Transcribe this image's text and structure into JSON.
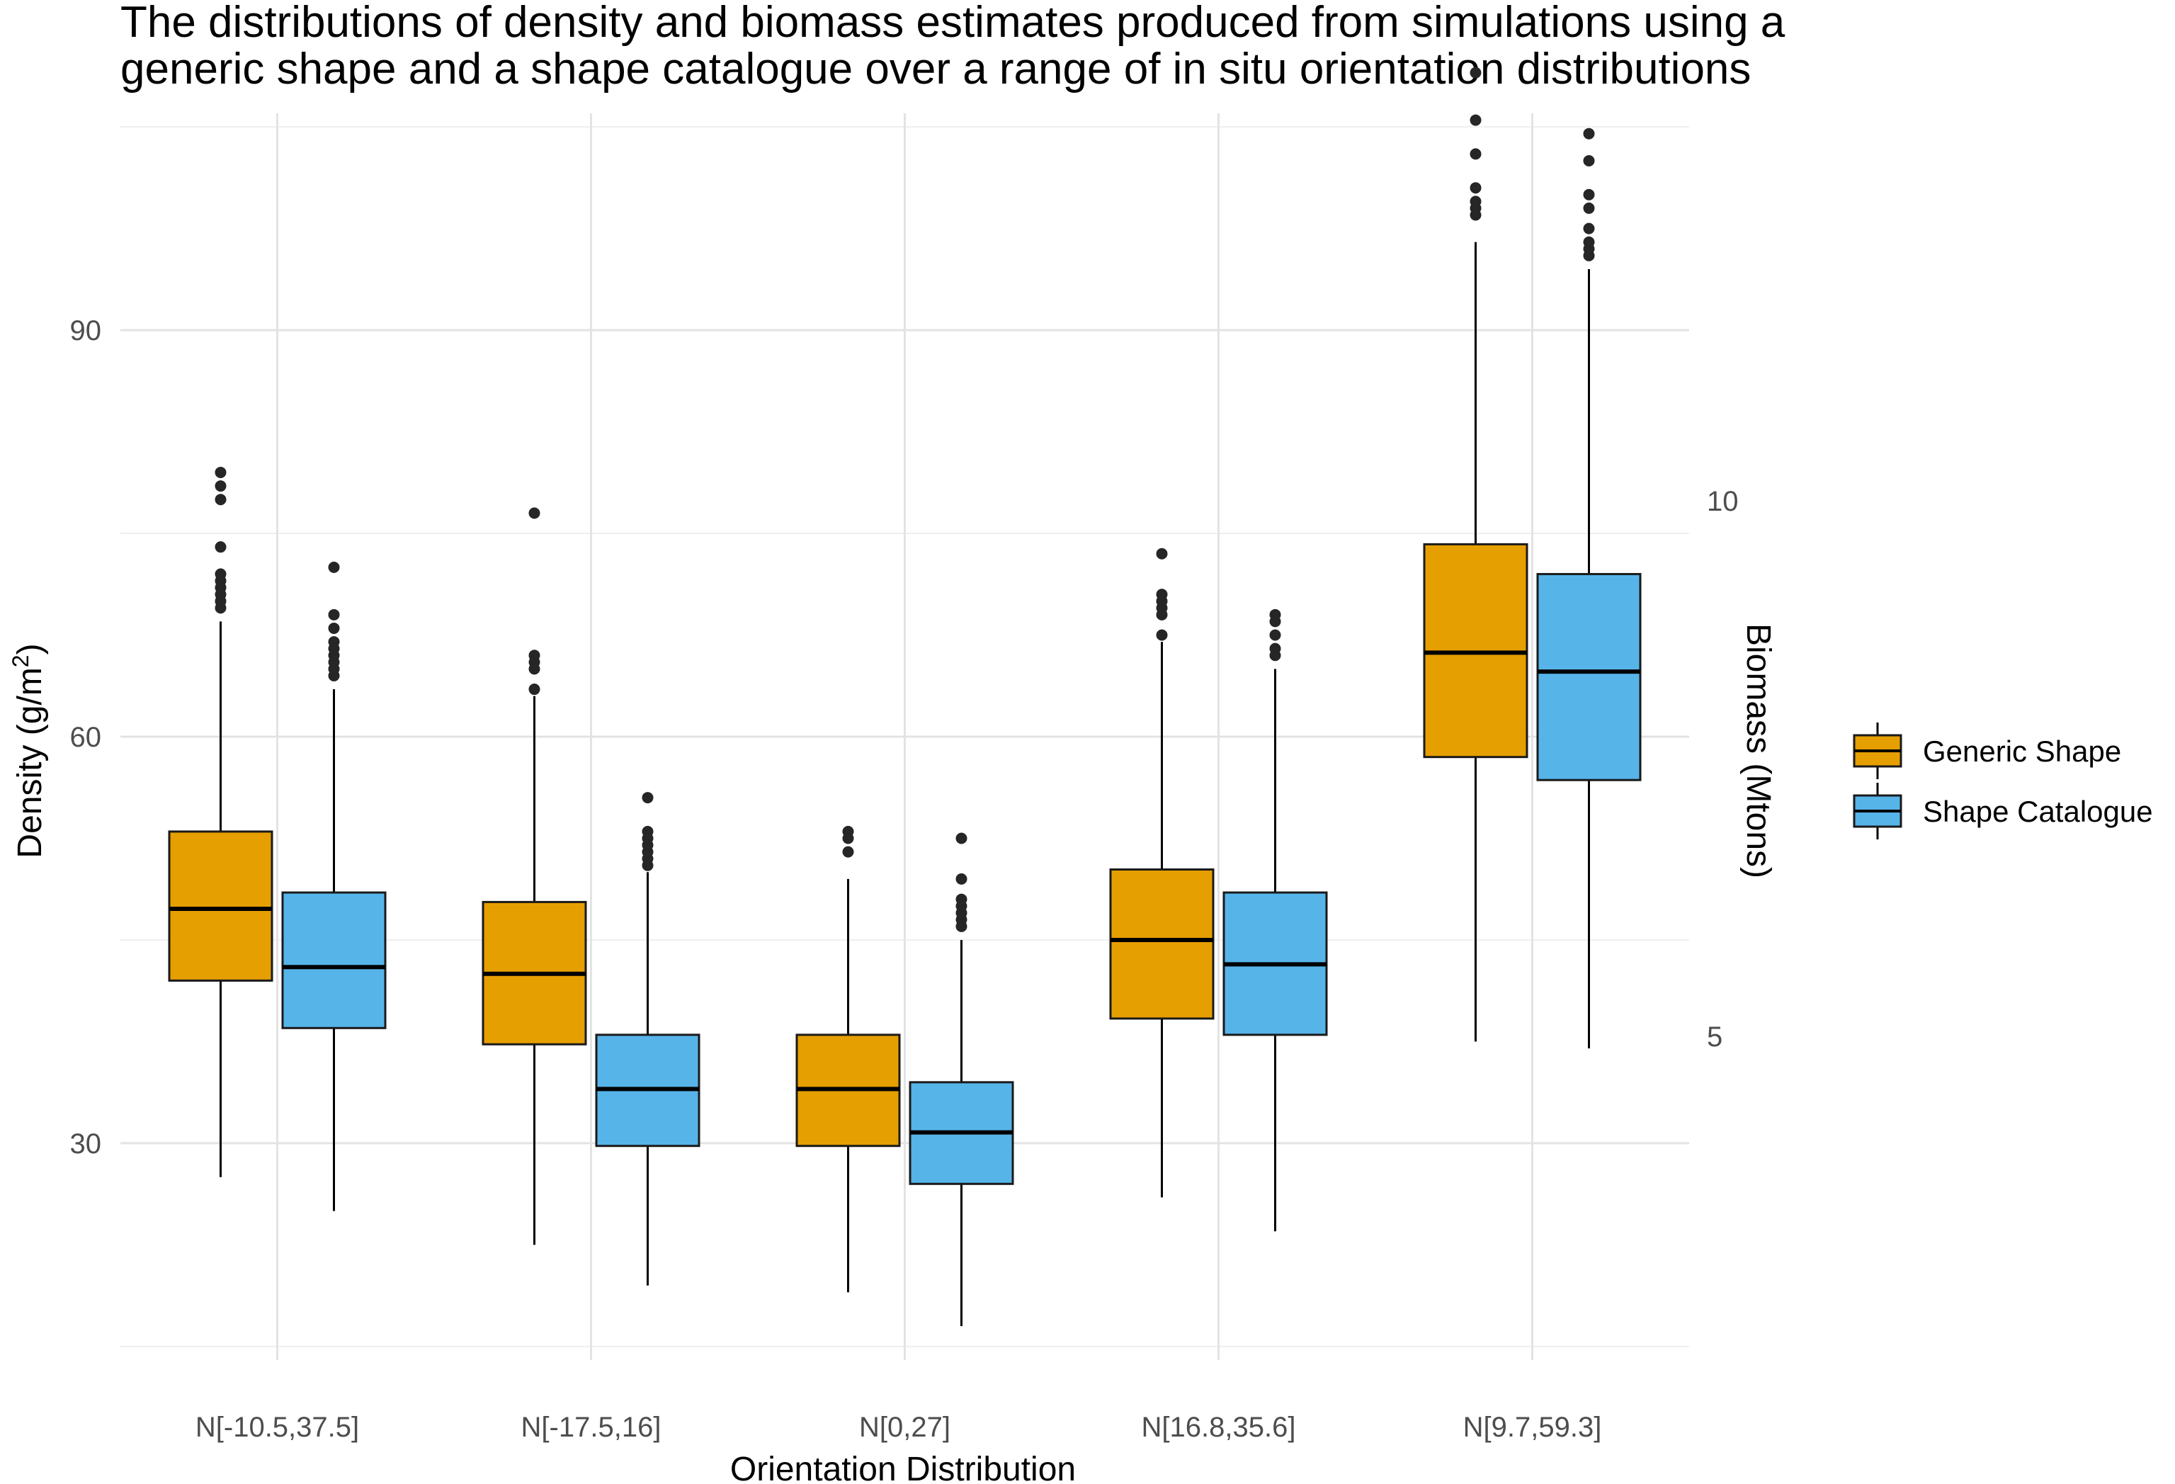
{
  "chart_data": {
    "type": "boxplot",
    "title_lines": [
      "The distributions of density and biomass estimates produced from simulations using a",
      "generic shape and a shape catalogue over a range of in situ orientation distributions"
    ],
    "xlabel": "Orientation Distribution",
    "ylabel": "Density (g/m",
    "ylabel_sup": "2",
    "ylabel_close": ")",
    "y2label": "Biomass (Mtons)",
    "ylim": [
      14,
      106
    ],
    "yticks": [
      30,
      60,
      90
    ],
    "yticks_minor": [
      15,
      45,
      75,
      105
    ],
    "y2ticks": [
      {
        "label": "5",
        "at_density": 37.9
      },
      {
        "label": "10",
        "at_density": 77.4
      }
    ],
    "categories": [
      "N[-10.5,37.5]",
      "N[-17.5,16]",
      "N[0,27]",
      "N[16.8,35.6]",
      "N[9.7,59.3]"
    ],
    "series": [
      {
        "name": "Generic Shape",
        "color": "#E69F00",
        "boxes": [
          {
            "min": 27.5,
            "q1": 42.0,
            "median": 47.3,
            "q3": 53.0,
            "max": 68.5,
            "outliers": [
              69.5,
              70.0,
              70.5,
              71.0,
              71.5,
              72.0,
              74.0,
              77.5,
              78.5,
              79.5
            ]
          },
          {
            "min": 22.5,
            "q1": 37.3,
            "median": 42.5,
            "q3": 47.8,
            "max": 63.0,
            "outliers": [
              63.5,
              65.0,
              65.5,
              66.0,
              76.5
            ]
          },
          {
            "min": 19.0,
            "q1": 29.8,
            "median": 34.0,
            "q3": 38.0,
            "max": 49.5,
            "outliers": [
              51.5,
              52.5,
              53.0
            ]
          },
          {
            "min": 26.0,
            "q1": 39.2,
            "median": 45.0,
            "q3": 50.2,
            "max": 67.0,
            "outliers": [
              67.5,
              69.0,
              69.5,
              70.0,
              70.5,
              73.5
            ]
          },
          {
            "min": 37.5,
            "q1": 58.5,
            "median": 66.2,
            "q3": 74.2,
            "max": 96.5,
            "outliers": [
              98.5,
              99.0,
              99.5,
              100.5,
              103.0,
              105.5,
              109.0
            ]
          }
        ]
      },
      {
        "name": "Shape Catalogue",
        "color": "#56B4E9",
        "boxes": [
          {
            "min": 25.0,
            "q1": 38.5,
            "median": 43.0,
            "q3": 48.5,
            "max": 63.5,
            "outliers": [
              64.5,
              65.0,
              65.5,
              66.0,
              66.5,
              67.0,
              68.0,
              69.0,
              72.5
            ]
          },
          {
            "min": 19.5,
            "q1": 29.8,
            "median": 34.0,
            "q3": 38.0,
            "max": 50.0,
            "outliers": [
              50.5,
              51.0,
              51.5,
              52.0,
              52.5,
              53.0,
              55.5
            ]
          },
          {
            "min": 16.5,
            "q1": 27.0,
            "median": 30.8,
            "q3": 34.5,
            "max": 45.0,
            "outliers": [
              46.0,
              46.5,
              47.0,
              47.5,
              48.0,
              49.5,
              52.5
            ]
          },
          {
            "min": 23.5,
            "q1": 38.0,
            "median": 43.2,
            "q3": 48.5,
            "max": 65.0,
            "outliers": [
              66.0,
              66.5,
              67.5,
              68.5,
              69.0
            ]
          },
          {
            "min": 37.0,
            "q1": 56.8,
            "median": 64.8,
            "q3": 72.0,
            "max": 94.5,
            "outliers": [
              95.5,
              96.0,
              96.5,
              97.5,
              99.0,
              100.0,
              102.5,
              104.5
            ]
          }
        ]
      }
    ],
    "legend": {
      "position": "right",
      "entries": [
        "Generic Shape",
        "Shape Catalogue"
      ]
    },
    "grid": true
  }
}
